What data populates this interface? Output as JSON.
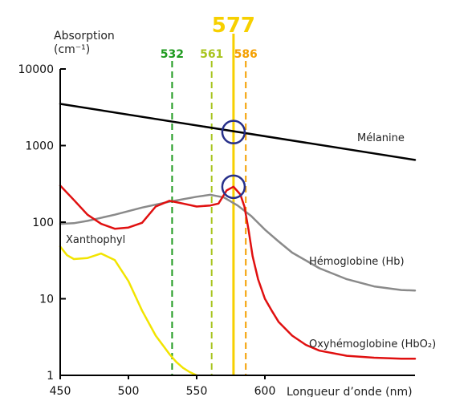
{
  "chart_data": {
    "type": "line",
    "title": "",
    "ylabel_line1": "Absorption",
    "ylabel_line2": "(cm⁻¹)",
    "xlabel": "Longueur d’onde (nm)",
    "y_scale": "log",
    "xlim": [
      450,
      710
    ],
    "ylim": [
      1,
      10000
    ],
    "x_ticks": [
      450,
      500,
      550,
      600
    ],
    "x_tick_labels": [
      "450",
      "500",
      "550",
      "600"
    ],
    "y_ticks": [
      1,
      10,
      100,
      1000,
      10000
    ],
    "y_tick_labels": [
      "1",
      "10",
      "100",
      "1000",
      "10000"
    ],
    "grid": false,
    "series": [
      {
        "name": "Mélanine",
        "color": "#000000",
        "x": [
          450,
          710
        ],
        "y": [
          3500,
          650
        ]
      },
      {
        "name": "Hémoglobine (Hb)",
        "color": "#8a8a8a",
        "x": [
          450,
          460,
          470,
          490,
          510,
          530,
          550,
          560,
          570,
          580,
          590,
          600,
          610,
          620,
          640,
          660,
          680,
          700,
          710
        ],
        "y": [
          95,
          97,
          104,
          125,
          155,
          185,
          215,
          228,
          210,
          165,
          120,
          80,
          56,
          40,
          25,
          18,
          14.5,
          13,
          12.8
        ]
      },
      {
        "name": "Oxyhémoglobine (HbO₂)",
        "color": "#e01010",
        "x": [
          450,
          460,
          470,
          480,
          490,
          500,
          510,
          520,
          530,
          540,
          550,
          560,
          566,
          572,
          577,
          582,
          585,
          588,
          591,
          595,
          600,
          605,
          610,
          620,
          630,
          640,
          660,
          680,
          700,
          710
        ],
        "y": [
          300,
          195,
          125,
          95,
          82,
          85,
          98,
          160,
          190,
          175,
          160,
          165,
          175,
          260,
          290,
          230,
          160,
          80,
          36,
          18,
          10,
          7,
          5,
          3.3,
          2.5,
          2.1,
          1.8,
          1.7,
          1.65,
          1.65
        ]
      },
      {
        "name": "Xanthophyl",
        "color": "#f2e400",
        "x": [
          450,
          455,
          460,
          470,
          480,
          490,
          500,
          510,
          520,
          530,
          535,
          540,
          545,
          550
        ],
        "y": [
          48,
          37,
          33,
          34,
          39,
          32,
          17,
          7,
          3.3,
          1.9,
          1.5,
          1.25,
          1.1,
          1.0
        ]
      }
    ],
    "wavelength_markers": [
      {
        "value": 532,
        "label": "532",
        "color": "#1e9a1e",
        "style": "dashed"
      },
      {
        "value": 561,
        "label": "561",
        "color": "#a8c41e",
        "style": "dashed"
      },
      {
        "value": 577,
        "label": "577",
        "color": "#f7d000",
        "style": "solid"
      },
      {
        "value": 586,
        "label": "586",
        "color": "#f4a000",
        "style": "dashed"
      }
    ],
    "highlight_circles": [
      {
        "x": 577,
        "y": 1500,
        "color": "#27308a"
      },
      {
        "x": 577,
        "y": 290,
        "color": "#27308a"
      }
    ],
    "axis_color": "#000000"
  }
}
